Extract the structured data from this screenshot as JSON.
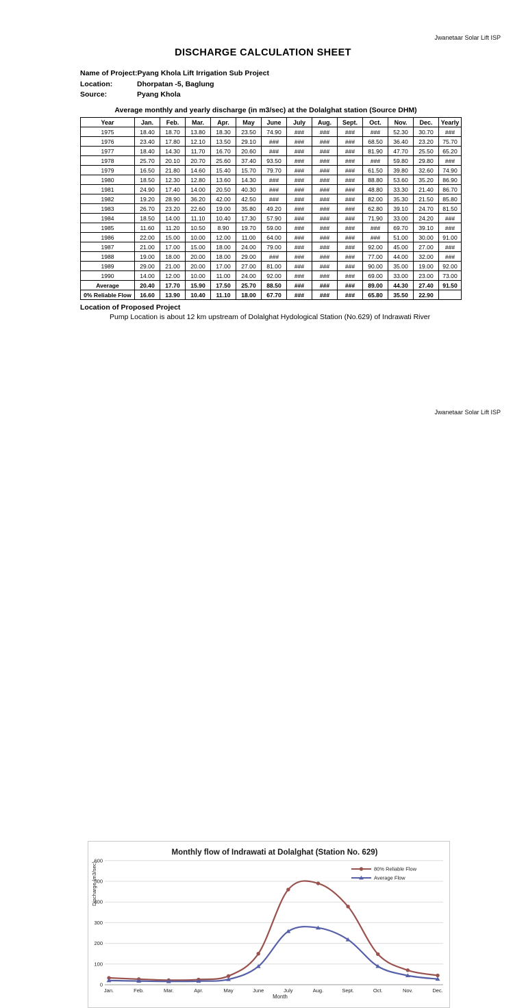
{
  "page1": {
    "header_right": "Jwanetaar Solar Lift ISP",
    "title": "DISCHARGE CALCULATION SHEET",
    "project_info": [
      {
        "label": "Name of Project:",
        "value": "Pyang Khola Lift Irrigation Sub Project"
      },
      {
        "label": "Location:",
        "value": "Dhorpatan -5, Baglung"
      },
      {
        "label": "Source:",
        "value": "Pyang Khola"
      }
    ],
    "table_title": "Average monthly and yearly discharge (in m3/sec) at the Dolalghat station (Source DHM)",
    "table": {
      "headers": [
        "Year",
        "Jan.",
        "Feb.",
        "Mar.",
        "Apr.",
        "May",
        "June",
        "July",
        "Aug.",
        "Sept.",
        "Oct.",
        "Nov.",
        "Dec.",
        "Yearly"
      ],
      "rows": [
        [
          "1975",
          "18.40",
          "18.70",
          "13.80",
          "18.30",
          "23.50",
          "74.90",
          "###",
          "###",
          "###",
          "###",
          "52.30",
          "30.70",
          "###"
        ],
        [
          "1976",
          "23.40",
          "17.80",
          "12.10",
          "13.50",
          "29.10",
          "###",
          "###",
          "###",
          "###",
          "68.50",
          "36.40",
          "23.20",
          "75.70"
        ],
        [
          "1977",
          "18.40",
          "14.30",
          "11.70",
          "16.70",
          "20.60",
          "###",
          "###",
          "###",
          "###",
          "81.90",
          "47.70",
          "25.50",
          "65.20"
        ],
        [
          "1978",
          "25.70",
          "20.10",
          "20.70",
          "25.60",
          "37.40",
          "93.50",
          "###",
          "###",
          "###",
          "###",
          "59.80",
          "29.80",
          "###"
        ],
        [
          "1979",
          "16.50",
          "21.80",
          "14.60",
          "15.40",
          "15.70",
          "79.70",
          "###",
          "###",
          "###",
          "61.50",
          "39.80",
          "32.60",
          "74.90"
        ],
        [
          "1980",
          "18.50",
          "12.30",
          "12.80",
          "13.60",
          "14.30",
          "###",
          "###",
          "###",
          "###",
          "88.80",
          "53.60",
          "35.20",
          "86.90"
        ],
        [
          "1981",
          "24.90",
          "17.40",
          "14.00",
          "20.50",
          "40.30",
          "###",
          "###",
          "###",
          "###",
          "48.80",
          "33.30",
          "21.40",
          "86.70"
        ],
        [
          "1982",
          "19.20",
          "28.90",
          "36.20",
          "42.00",
          "42.50",
          "###",
          "###",
          "###",
          "###",
          "82.00",
          "35.30",
          "21.50",
          "85.80"
        ],
        [
          "1983",
          "26.70",
          "23.20",
          "22.60",
          "19.00",
          "35.80",
          "49.20",
          "###",
          "###",
          "###",
          "62.80",
          "39.10",
          "24.70",
          "81.50"
        ],
        [
          "1984",
          "18.50",
          "14.00",
          "11.10",
          "10.40",
          "17.30",
          "57.90",
          "###",
          "###",
          "###",
          "71.90",
          "33.00",
          "24.20",
          "###"
        ],
        [
          "1985",
          "11.60",
          "11.20",
          "10.50",
          "8.90",
          "19.70",
          "59.00",
          "###",
          "###",
          "###",
          "###",
          "69.70",
          "39.10",
          "###"
        ],
        [
          "1986",
          "22.00",
          "15.00",
          "10.00",
          "12.00",
          "11.00",
          "64.00",
          "###",
          "###",
          "###",
          "###",
          "51.00",
          "30.00",
          "91.00"
        ],
        [
          "1987",
          "21.00",
          "17.00",
          "15.00",
          "18.00",
          "24.00",
          "79.00",
          "###",
          "###",
          "###",
          "92.00",
          "45.00",
          "27.00",
          "###"
        ],
        [
          "1988",
          "19.00",
          "18.00",
          "20.00",
          "18.00",
          "29.00",
          "###",
          "###",
          "###",
          "###",
          "77.00",
          "44.00",
          "32.00",
          "###"
        ],
        [
          "1989",
          "29.00",
          "21.00",
          "20.00",
          "17.00",
          "27.00",
          "81.00",
          "###",
          "###",
          "###",
          "90.00",
          "35.00",
          "19.00",
          "92.00"
        ],
        [
          "1990",
          "14.00",
          "12.00",
          "10.00",
          "11.00",
          "24.00",
          "92.00",
          "###",
          "###",
          "###",
          "69.00",
          "33.00",
          "23.00",
          "73.00"
        ],
        [
          "Average",
          "20.40",
          "17.70",
          "15.90",
          "17.50",
          "25.70",
          "88.50",
          "###",
          "###",
          "###",
          "89.00",
          "44.30",
          "27.40",
          "91.50"
        ],
        [
          "0% Reliable Flow",
          "16.60",
          "13.90",
          "10.40",
          "11.10",
          "18.00",
          "67.70",
          "###",
          "###",
          "###",
          "65.80",
          "35.50",
          "22.90",
          ""
        ]
      ],
      "summary_row_labels": [
        "Average",
        "0% Reliable Flow"
      ]
    },
    "location_heading": "Location of Proposed Project",
    "location_text": "Pump Location is about 12 km upstream of Dolalghat Hydological Station (No.629) of Indrawati River"
  },
  "page2": {
    "header_right": "Jwanetaar Solar Lift ISP"
  },
  "chart_data": {
    "type": "line",
    "title": "Monthly flow of Indrawati at Dolalghat (Station No. 629)",
    "xlabel": "Month",
    "ylabel": "Discharge (m3/sec)",
    "ylim": [
      0,
      600
    ],
    "ytick_interval": 100,
    "yticks": [
      0,
      100,
      200,
      300,
      400,
      500,
      600
    ],
    "grid": true,
    "legend_position": "top-right",
    "categories": [
      "Jan.",
      "Feb.",
      "Mar.",
      "Apr.",
      "May",
      "June",
      "July",
      "Aug.",
      "Sept.",
      "Oct.",
      "Nov.",
      "Dec."
    ],
    "series": [
      {
        "name": "80% Reliable Flow",
        "color": "#99524D",
        "marker": "circle",
        "values": [
          33,
          27,
          22,
          25,
          42,
          150,
          460,
          490,
          378,
          148,
          70,
          45
        ]
      },
      {
        "name": "Average Flow",
        "color": "#5560A8",
        "marker": "triangle",
        "values": [
          20.4,
          17.7,
          15.9,
          17.5,
          25.7,
          88.5,
          258,
          275,
          218,
          89,
          44.3,
          27.4
        ]
      }
    ]
  }
}
